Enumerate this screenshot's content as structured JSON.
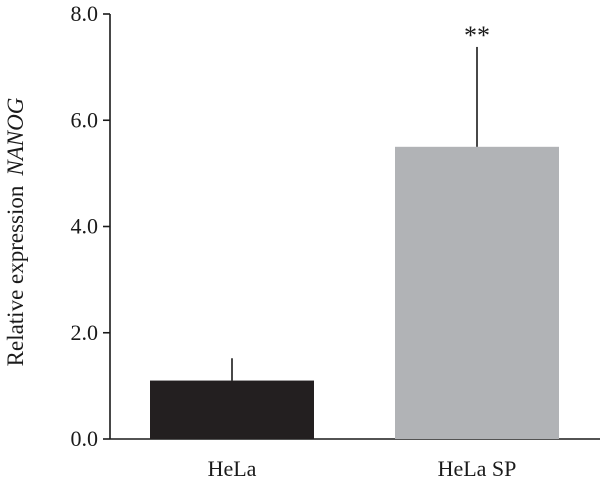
{
  "chart_data": {
    "type": "bar",
    "categories": [
      "HeLa",
      "HeLa SP"
    ],
    "values": [
      1.1,
      5.5
    ],
    "error_upper": [
      1.52,
      7.38
    ],
    "annotations": [
      "",
      "**"
    ],
    "ylabel_prefix": "Relative expression",
    "ylabel_gene": "NANOG",
    "ylim": [
      0,
      8
    ],
    "yticks": [
      0,
      2,
      4,
      6,
      8
    ],
    "ytick_labels": [
      "0.0",
      "2.0",
      "4.0",
      "6.0",
      "8.0"
    ],
    "grid": false,
    "legend": "none",
    "colors": [
      "#231f20",
      "#b1b3b6"
    ]
  }
}
